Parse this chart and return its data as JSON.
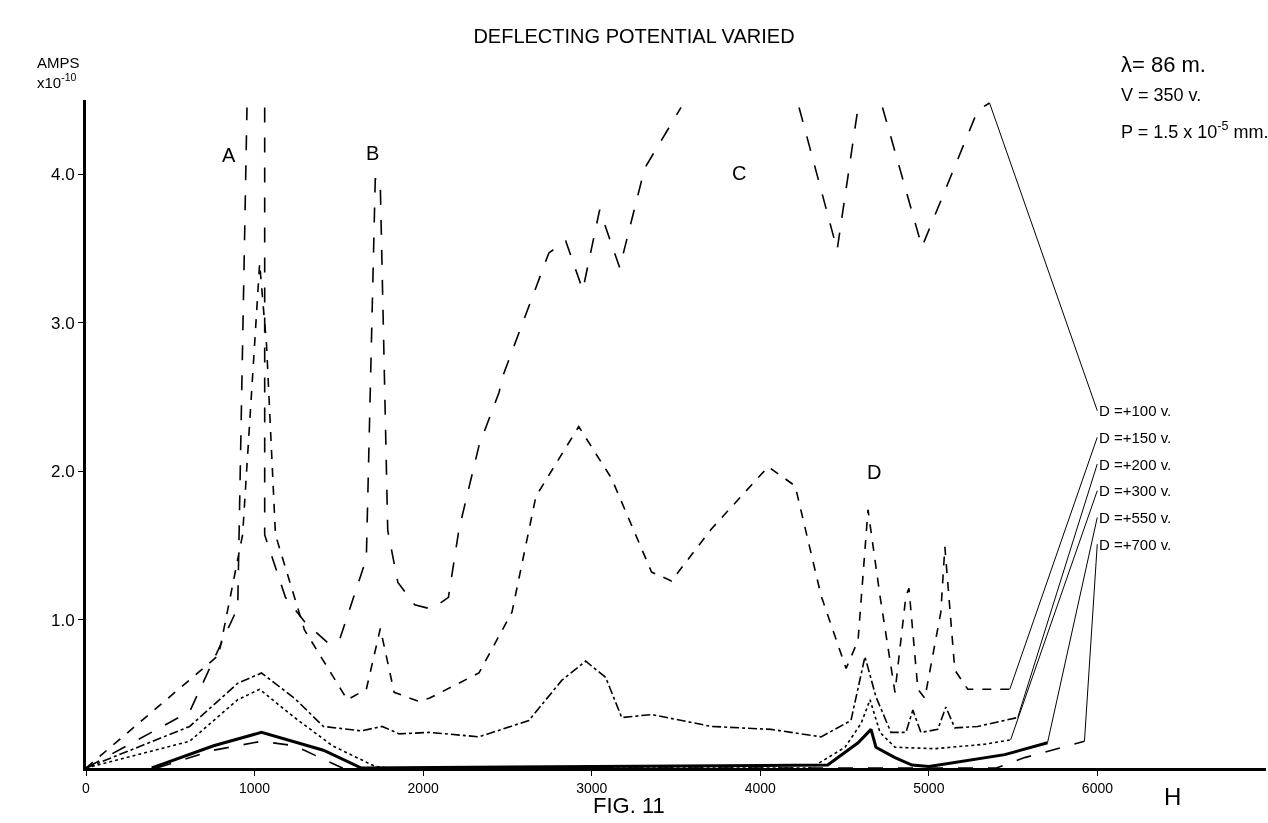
{
  "chart_data": {
    "type": "line",
    "title": "DEFLECTING POTENTIAL VARIED",
    "xlabel": "H",
    "ylabel": "AMPS\nx10$^{-10}$",
    "xlim": [
      0,
      7000
    ],
    "ylim": [
      0,
      4.5
    ],
    "xticks": [
      0,
      1000,
      2000,
      3000,
      4000,
      5000,
      6000
    ],
    "yticks": [
      {
        "value": 1,
        "label": "1.0"
      },
      {
        "value": 2,
        "label": "2.0"
      },
      {
        "value": 3,
        "label": "3.0"
      },
      {
        "value": 4,
        "label": "4.0"
      }
    ],
    "grid": false,
    "legend": false,
    "marker": "none",
    "annotations": [
      "λ= 86 m.",
      "V = 350 v.",
      "P = 1.5 x 10$^{-5}$ mm.",
      "FIG. 11",
      "A",
      "B",
      "C",
      "D"
    ],
    "series": [
      {
        "name": "D =+100 v.",
        "color": "#000000",
        "line_style": "longdashed",
        "x": [
          0,
          615,
          900,
          955,
          null,
          1060,
          1060,
          1183,
          1300,
          1438,
          1503,
          1663,
          1716,
          1745,
          1790,
          1850,
          1950,
          2050,
          2150,
          2213,
          2331,
          2450,
          2479,
          2746,
          2846,
          2947,
          3047,
          3166,
          3314,
          3530,
          null,
          4230,
          4456,
          4580,
          null,
          4725,
          4959,
          5290,
          5360
        ],
        "values": [
          0,
          0.38,
          1.08,
          4.45,
          null,
          4.45,
          1.57,
          1.15,
          0.98,
          0.84,
          0.86,
          1.41,
          3.97,
          3.97,
          1.6,
          1.25,
          1.1,
          1.07,
          1.15,
          1.61,
          2.17,
          2.53,
          2.66,
          3.47,
          3.55,
          3.22,
          3.76,
          3.37,
          4.04,
          4.45,
          null,
          4.45,
          3.49,
          4.45,
          null,
          4.45,
          3.51,
          4.43,
          4.48
        ]
      },
      {
        "name": "D =+150 v.",
        "color": "#000000",
        "line_style": "dashed",
        "x": [
          0,
          787,
          929,
          1000,
          1030,
          1071,
          1124,
          1296,
          1550,
          1663,
          1746,
          1828,
          1970,
          2036,
          2331,
          2527,
          2669,
          2923,
          3118,
          3355,
          3473,
          3710,
          4047,
          4207,
          4361,
          4509,
          4580,
          4639,
          4710,
          4799,
          4864,
          4882,
          4935,
          4976,
          5071,
          5095,
          5154,
          5231,
          5480
        ],
        "values": [
          0,
          0.76,
          1.57,
          2.85,
          3.4,
          2.85,
          1.57,
          0.93,
          0.46,
          0.53,
          0.94,
          0.51,
          0.45,
          0.47,
          0.64,
          1.05,
          1.83,
          2.3,
          1.95,
          1.32,
          1.26,
          1.61,
          2.03,
          1.9,
          1.16,
          0.67,
          0.86,
          1.74,
          1.16,
          0.51,
          1.16,
          1.21,
          0.53,
          0.47,
          1.05,
          1.49,
          0.66,
          0.53,
          0.53
        ]
      },
      {
        "name": "D =+200 v.",
        "color": "#000000",
        "line_style": "dashdot",
        "x": [
          0,
          615,
          899,
          1041,
          1237,
          1408,
          1633,
          1757,
          1858,
          2036,
          2331,
          2627,
          2822,
          2964,
          3083,
          3178,
          3355,
          3710,
          4065,
          4361,
          4538,
          4621,
          4686,
          4775,
          4864,
          4905,
          4953,
          5053,
          5101,
          5154,
          5290,
          5527
        ],
        "values": [
          0,
          0.28,
          0.57,
          0.64,
          0.47,
          0.28,
          0.25,
          0.28,
          0.23,
          0.24,
          0.21,
          0.32,
          0.59,
          0.72,
          0.61,
          0.34,
          0.36,
          0.28,
          0.26,
          0.21,
          0.32,
          0.75,
          0.48,
          0.24,
          0.24,
          0.39,
          0.24,
          0.26,
          0.41,
          0.27,
          0.28,
          0.34
        ]
      },
      {
        "name": "D =+300 v.",
        "color": "#000000",
        "line_style": "dotted",
        "x": [
          0,
          615,
          900,
          1030,
          1237,
          1462,
          1716,
          1800,
          4300,
          4503,
          4598,
          4651,
          4710,
          4799,
          5036,
          5331,
          5485
        ],
        "values": [
          0,
          0.18,
          0.46,
          0.53,
          0.34,
          0.15,
          0.01,
          0,
          0,
          0.14,
          0.3,
          0.46,
          0.24,
          0.14,
          0.13,
          0.16,
          0.19
        ]
      },
      {
        "name": "D =+550 v.",
        "color": "#000000",
        "line_style": "solid",
        "x": [
          390,
          757,
          1041,
          1408,
          1633,
          4400,
          4580,
          4657,
          4686,
          4799,
          4900,
          5000,
          5450,
          5704
        ],
        "values": [
          0,
          0.15,
          0.24,
          0.12,
          0,
          0.02,
          0.17,
          0.26,
          0.14,
          0.07,
          0.02,
          0.01,
          0.09,
          0.17
        ]
      },
      {
        "name": "D =+700 v.",
        "color": "#000000",
        "line_style": "longdashed",
        "x": [
          420,
          757,
          1041,
          1237,
          1521,
          5400,
          5568,
          5923
        ],
        "values": [
          0,
          0.12,
          0.18,
          0.15,
          0,
          0,
          0.07,
          0.18
        ]
      }
    ]
  }
}
